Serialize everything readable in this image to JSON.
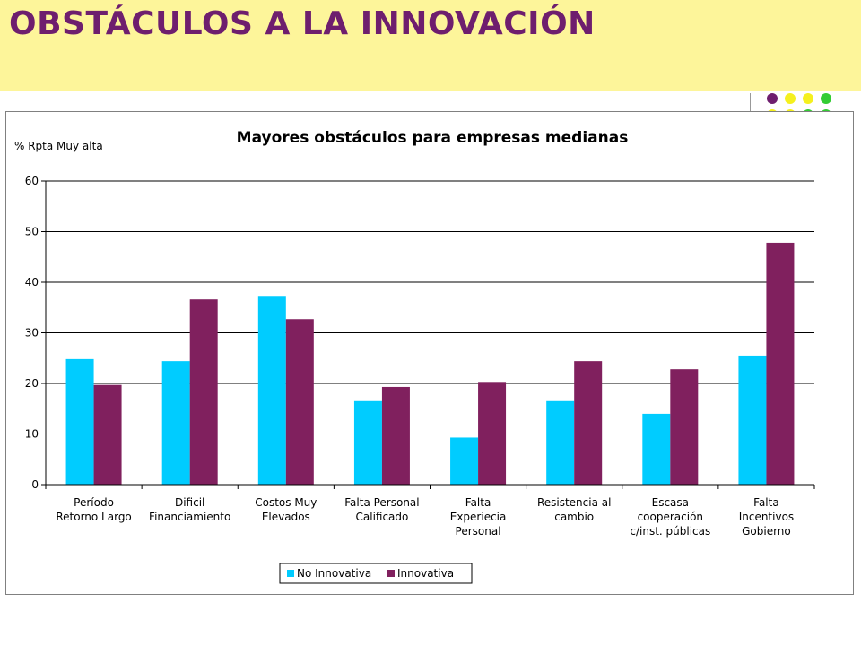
{
  "header": {
    "title": "OBSTÁCULOS A LA INNOVACIÓN"
  },
  "colors": {
    "banner_bg": "#fdf59a",
    "title_text": "#6e1e6e",
    "series_no_innovativa": "#00ccff",
    "series_innovativa": "#80205e",
    "dot_purple": "#6e1e6e",
    "dot_yellow": "#f5f01e",
    "dot_green": "#33cc33"
  },
  "chart_data": {
    "type": "bar",
    "title": "Mayores obstáculos para empresas medianas",
    "ylabel": "% Rpta Muy alta",
    "xlabel": "",
    "ylim": [
      0,
      60
    ],
    "yticks": [
      0,
      10,
      20,
      30,
      40,
      50,
      60
    ],
    "grid": true,
    "legend_placement": "bottom-center",
    "categories": [
      [
        "Período",
        "Retorno Largo"
      ],
      [
        "Dificil",
        "Financiamiento"
      ],
      [
        "Costos Muy",
        "Elevados"
      ],
      [
        "Falta Personal",
        "Calificado"
      ],
      [
        "Falta",
        "Experiecia",
        "Personal"
      ],
      [
        "Resistencia al",
        "cambio"
      ],
      [
        "Escasa",
        "cooperación",
        "c/inst. públicas"
      ],
      [
        "Falta",
        "Incentivos",
        "Gobierno"
      ]
    ],
    "series": [
      {
        "name": "No Innovativa",
        "color": "#00ccff",
        "values": [
          24.8,
          24.4,
          37.3,
          16.5,
          9.3,
          16.5,
          14.0,
          25.5
        ]
      },
      {
        "name": "Innovativa",
        "color": "#80205e",
        "values": [
          19.7,
          36.6,
          32.7,
          19.3,
          20.3,
          24.4,
          22.8,
          47.8
        ]
      }
    ]
  }
}
